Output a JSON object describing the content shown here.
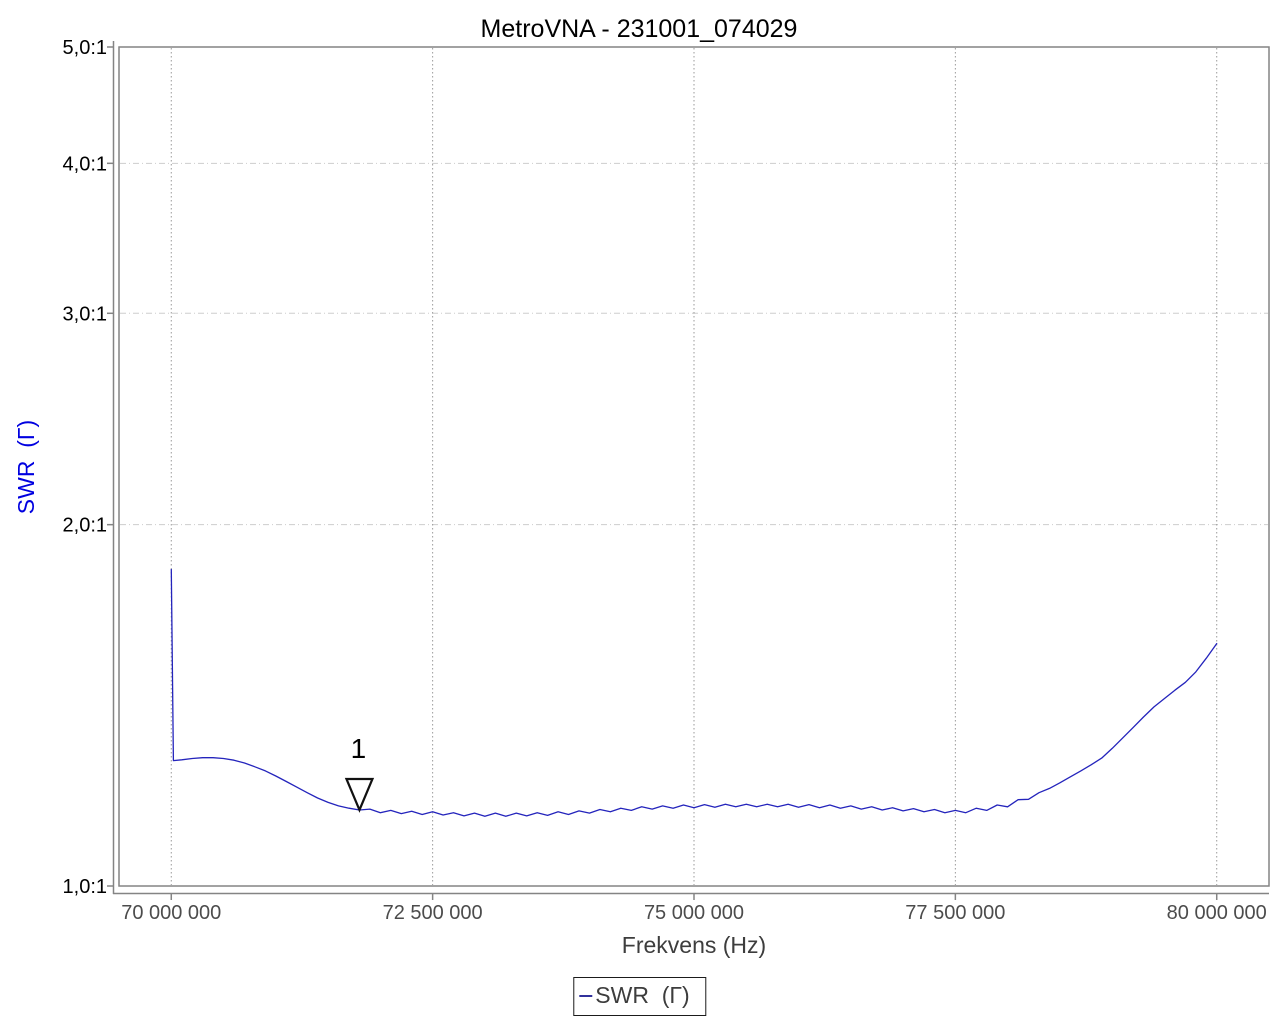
{
  "page": {
    "background": "#ffffff"
  },
  "chart": {
    "title": "MetroVNA - 231001_074029",
    "x_axis": {
      "label": "Frekvens (Hz)"
    },
    "y_axis": {
      "label": "SWR  (Γ)"
    },
    "legend": {
      "label": "SWR  (Γ)"
    },
    "marker": {
      "label": "1"
    }
  },
  "chart_data": {
    "type": "line",
    "title": "MetroVNA - 231001_074029",
    "xlabel": "Frekvens (Hz)",
    "ylabel": "SWR (Γ)",
    "x_unit": "Hz",
    "xlim": [
      69500000,
      80500000
    ],
    "x_ticks": [
      70000000,
      72500000,
      75000000,
      77500000,
      80000000
    ],
    "x_tick_labels": [
      "70 000 000",
      "72 500 000",
      "75 000 000",
      "77 500 000",
      "80 000 000"
    ],
    "y_scale": "log",
    "ylim": [
      1.0,
      5.0
    ],
    "y_ticks": [
      5.0,
      4.0,
      3.0,
      2.0,
      1.0
    ],
    "y_tick_labels": [
      "5,0:1",
      "4,0:1",
      "3,0:1",
      "2,0:1",
      "1,0:1"
    ],
    "grid": true,
    "legend_position": "bottom",
    "markers": [
      {
        "label": "1",
        "x": 71800000,
        "y": 1.157,
        "shape": "triangle-down-outline"
      }
    ],
    "colors": {
      "trace": "#2424bc",
      "plot_border": "#848484",
      "axis_line": "#848484",
      "grid_vertical": "#9a9a9a",
      "grid_horizontal": "#cdcdcd",
      "x_tick_label": "#4c4c4c",
      "y_tick_label": "#000000",
      "x_axis_title": "#3d3d3d",
      "y_axis_title": "#0000e0",
      "marker_outline": "#111111",
      "legend_line": "#31319c",
      "legend_text": "#3d3d3d"
    },
    "series": [
      {
        "name": "SWR (Γ)",
        "color": "#2424bc",
        "x": [
          70000000,
          70020000,
          70100000,
          70200000,
          70300000,
          70400000,
          70500000,
          70600000,
          70700000,
          70800000,
          70900000,
          71000000,
          71100000,
          71200000,
          71300000,
          71400000,
          71500000,
          71600000,
          71700000,
          71800000,
          71900000,
          72000000,
          72100000,
          72200000,
          72300000,
          72400000,
          72500000,
          72600000,
          72700000,
          72800000,
          72900000,
          73000000,
          73100000,
          73200000,
          73300000,
          73400000,
          73500000,
          73600000,
          73700000,
          73800000,
          73900000,
          74000000,
          74100000,
          74200000,
          74300000,
          74400000,
          74500000,
          74600000,
          74700000,
          74800000,
          74900000,
          75000000,
          75100000,
          75200000,
          75300000,
          75400000,
          75500000,
          75600000,
          75700000,
          75800000,
          75900000,
          76000000,
          76100000,
          76200000,
          76300000,
          76400000,
          76500000,
          76600000,
          76700000,
          76800000,
          76900000,
          77000000,
          77100000,
          77200000,
          77300000,
          77400000,
          77500000,
          77600000,
          77700000,
          77800000,
          77900000,
          78000000,
          78100000,
          78200000,
          78300000,
          78400000,
          78500000,
          78600000,
          78700000,
          78800000,
          78900000,
          79000000,
          79100000,
          79200000,
          79300000,
          79400000,
          79500000,
          79600000,
          79700000,
          79800000,
          79900000,
          80000000
        ],
        "y": [
          1.835,
          1.272,
          1.274,
          1.277,
          1.279,
          1.279,
          1.277,
          1.273,
          1.266,
          1.257,
          1.247,
          1.235,
          1.222,
          1.209,
          1.196,
          1.184,
          1.174,
          1.166,
          1.161,
          1.157,
          1.159,
          1.151,
          1.156,
          1.149,
          1.154,
          1.147,
          1.153,
          1.146,
          1.151,
          1.144,
          1.15,
          1.143,
          1.15,
          1.143,
          1.15,
          1.144,
          1.151,
          1.145,
          1.153,
          1.147,
          1.155,
          1.15,
          1.158,
          1.153,
          1.161,
          1.156,
          1.164,
          1.159,
          1.166,
          1.161,
          1.168,
          1.162,
          1.169,
          1.163,
          1.17,
          1.164,
          1.17,
          1.164,
          1.17,
          1.164,
          1.17,
          1.163,
          1.169,
          1.162,
          1.168,
          1.161,
          1.166,
          1.159,
          1.164,
          1.157,
          1.162,
          1.155,
          1.16,
          1.153,
          1.158,
          1.151,
          1.156,
          1.151,
          1.161,
          1.156,
          1.168,
          1.164,
          1.18,
          1.181,
          1.196,
          1.206,
          1.219,
          1.233,
          1.247,
          1.262,
          1.278,
          1.302,
          1.328,
          1.355,
          1.383,
          1.41,
          1.433,
          1.456,
          1.478,
          1.508,
          1.548,
          1.592
        ]
      }
    ]
  }
}
